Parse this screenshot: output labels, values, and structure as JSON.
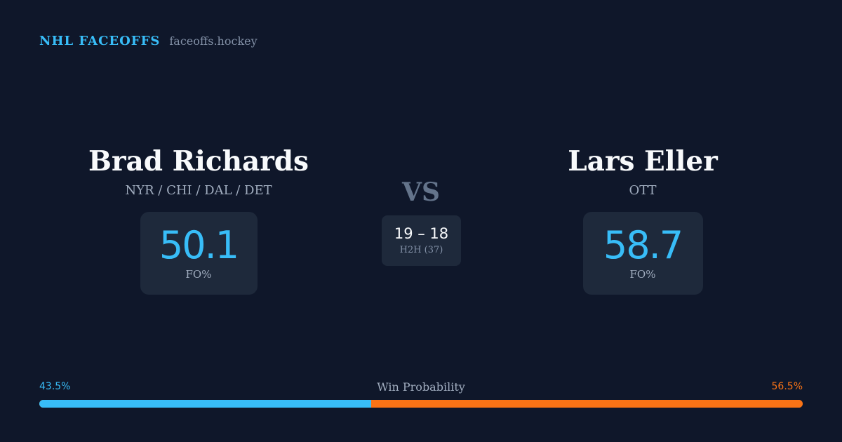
{
  "brand": {
    "name": "NHL FACEOFFS",
    "domain": "faceoffs.hockey"
  },
  "player_left": {
    "name": "Brad Richards",
    "teams": "NYR / CHI / DAL / DET",
    "fo_pct": "50.1",
    "fo_label": "FO%"
  },
  "player_right": {
    "name": "Lars Eller",
    "teams": "OTT",
    "fo_pct": "58.7",
    "fo_label": "FO%"
  },
  "matchup": {
    "vs_label": "VS",
    "h2h_score": "19 – 18",
    "h2h_label": "H2H (37)"
  },
  "win_probability": {
    "title": "Win Probability",
    "left_label": "43.5%",
    "right_label": "56.5%",
    "left_value": 43.5,
    "right_value": 56.5
  },
  "colors": {
    "background": "#0f172a",
    "card": "#1e293b",
    "accent_left": "#38bdf8",
    "accent_right": "#f97316"
  }
}
